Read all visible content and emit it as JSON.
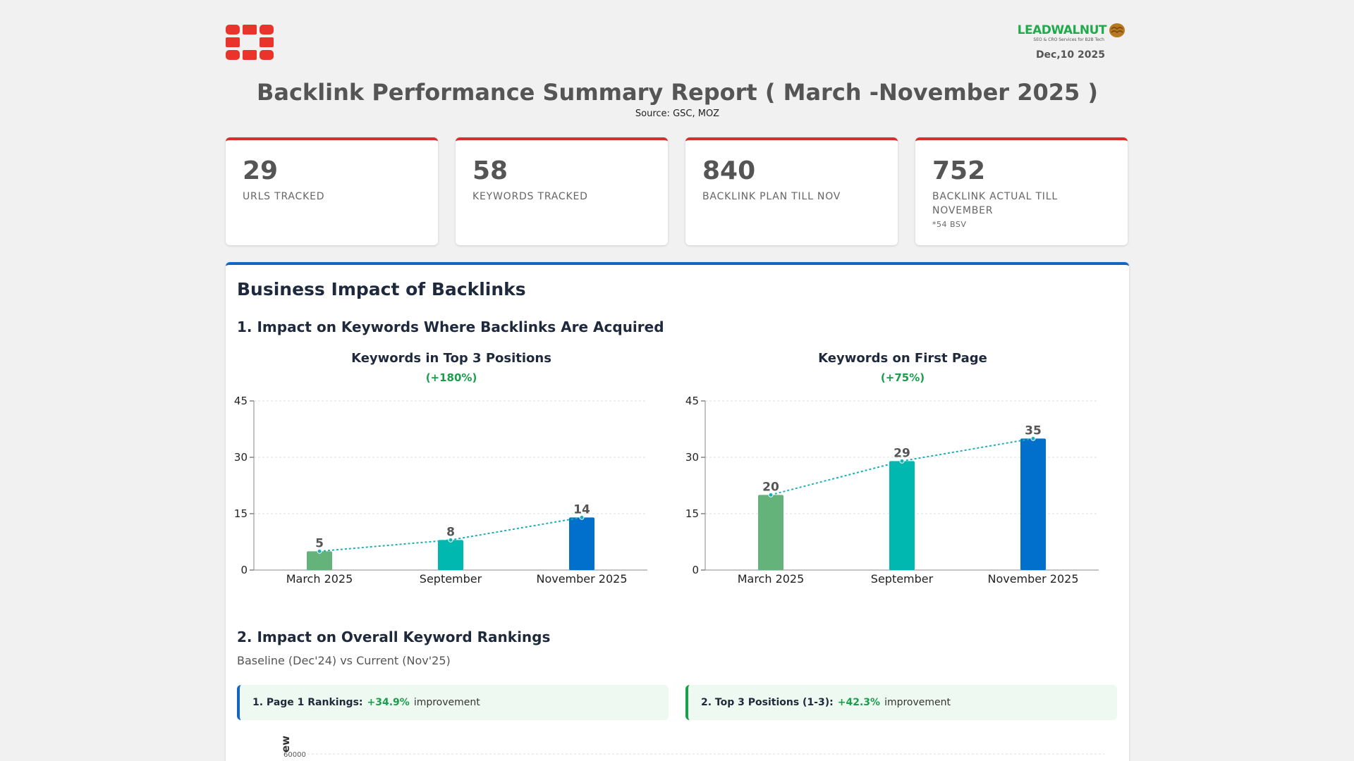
{
  "header": {
    "brand_name": "LEADWALNUT",
    "brand_tagline": "SEO & CRO Services for B2B Tech",
    "date": "Dec,10 2025",
    "title": "Backlink Performance Summary Report ( March -November 2025 )",
    "source": "Source: GSC, MOZ"
  },
  "colors": {
    "accent_red": "#d62f2f",
    "accent_blue": "#1565c0",
    "positive_green": "#1a9e4b",
    "bar_green": "#63b37a",
    "bar_teal": "#00b8b0",
    "bar_blue": "#0070cc",
    "trend_line": "#1ab0b8"
  },
  "cards": [
    {
      "value": "29",
      "label": "URLS TRACKED",
      "note": ""
    },
    {
      "value": "58",
      "label": "KEYWORDS TRACKED",
      "note": ""
    },
    {
      "value": "840",
      "label": "BACKLINK PLAN TILL NOV",
      "note": ""
    },
    {
      "value": "752",
      "label": "BACKLINK ACTUAL TILL NOVEMBER",
      "note": "*54 BSV"
    }
  ],
  "panel": {
    "title": "Business Impact of Backlinks",
    "section1_title": "1. Impact on Keywords Where Backlinks Are Acquired",
    "section2_title": "2. Impact on Overall Keyword Rankings",
    "section2_subtitle": "Baseline (Dec'24) vs Current (Nov'25)",
    "improvements": [
      {
        "label": "1. Page 1 Rankings:",
        "value": "+34.9%",
        "suffix": "improvement"
      },
      {
        "label": "2. Top 3 Positions (1-3):",
        "value": "+42.3%",
        "suffix": "improvement"
      }
    ],
    "partial_chart": {
      "ylabel": "ew",
      "first_tick": "60000"
    }
  },
  "chart_data": [
    {
      "type": "bar",
      "title": "Keywords in Top 3 Positions",
      "subtitle": "(+180%)",
      "categories": [
        "March 2025",
        "September",
        "November 2025"
      ],
      "values": [
        5,
        8,
        14
      ],
      "ylim": [
        0,
        45
      ],
      "yticks": [
        0,
        15,
        30,
        45
      ],
      "grid": true,
      "trend_line": true
    },
    {
      "type": "bar",
      "title": "Keywords on First Page",
      "subtitle": "(+75%)",
      "categories": [
        "March 2025",
        "September",
        "November 2025"
      ],
      "values": [
        20,
        29,
        35
      ],
      "ylim": [
        0,
        45
      ],
      "yticks": [
        0,
        15,
        30,
        45
      ],
      "grid": true,
      "trend_line": true
    }
  ]
}
